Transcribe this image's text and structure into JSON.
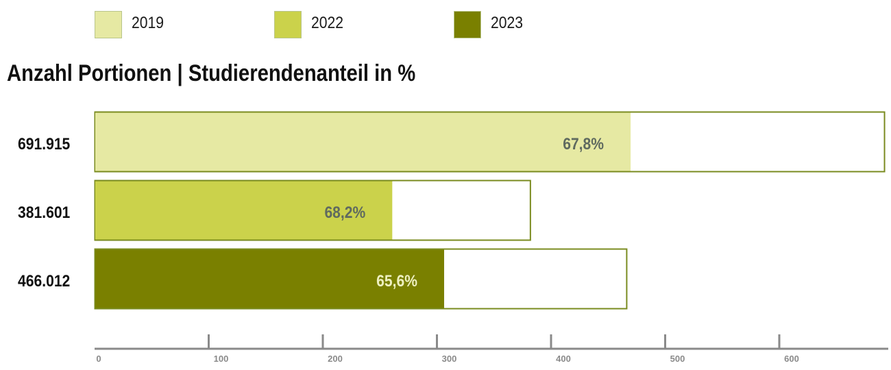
{
  "legend": [
    {
      "label": "2019",
      "color": "#e6e9a3"
    },
    {
      "label": "2022",
      "color": "#cbd24b"
    },
    {
      "label": "2023",
      "color": "#7a8000"
    }
  ],
  "chart_data": {
    "type": "bar",
    "orientation": "horizontal",
    "stacked_share": true,
    "title": "Anzahl Portionen | Studierendenanteil in %",
    "xlabel": "",
    "ylabel": "",
    "xlim": [
      0,
      690
    ],
    "x_ticks": [
      0,
      100,
      200,
      300,
      400,
      500,
      600
    ],
    "x_tick_labels": [
      "0",
      "100",
      "200",
      "300",
      "400",
      "500",
      "600"
    ],
    "grid": false,
    "legend_position": "top",
    "bars": [
      {
        "series": "2019",
        "total": 691.915,
        "total_label": "691.915",
        "share_percent": 67.8,
        "share_label": "67,8%",
        "fill": "#e6e9a3",
        "share_label_color": "#5f6a5f"
      },
      {
        "series": "2022",
        "total": 381.601,
        "total_label": "381.601",
        "share_percent": 68.2,
        "share_label": "68,2%",
        "fill": "#cbd24b",
        "share_label_color": "#5f6a5f"
      },
      {
        "series": "2023",
        "total": 466.012,
        "total_label": "466.012",
        "share_percent": 65.6,
        "share_label": "65,6%",
        "fill": "#7a8000",
        "share_label_color": "#eef0c0"
      }
    ],
    "outline_color": "#7a8b1f",
    "axis_color": "#8a8a8a"
  }
}
